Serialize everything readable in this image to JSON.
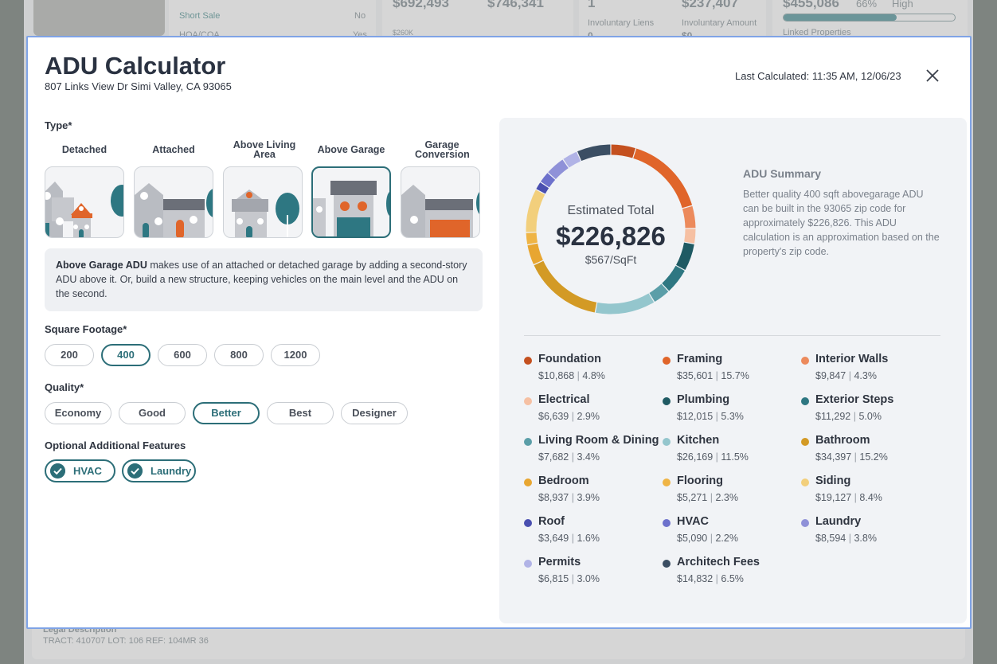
{
  "background": {
    "short_sale_label": "Short Sale",
    "short_sale_value": "No",
    "hoa_label": "HOA/COA",
    "hoa_value": "Yes",
    "value_a": "$692,493",
    "value_b": "$746,341",
    "axis_tick": "$260K",
    "liens_count": "1",
    "liens_amount": "$237,407",
    "involuntary_liens_label": "Involuntary Liens",
    "involuntary_amount_label": "Involuntary Amount",
    "involuntary_liens_value": "0",
    "involuntary_amount_value": "$0",
    "equity_value": "$455,086",
    "equity_percent": "66%",
    "equity_level": "High",
    "equity_fill": 0.66,
    "linked_properties_label": "Linked Properties",
    "legal_description_label": "Legal Description",
    "legal_description_value": "TRACT: 410707 LOT: 106 REF: 104MR 36"
  },
  "modal": {
    "title": "ADU Calculator",
    "address": "807 Links View Dr Simi Valley, CA 93065",
    "last_calculated": "Last Calculated: 11:35 AM, 12/06/23",
    "type_label": "Type*",
    "types": [
      {
        "label": "Detached",
        "selected": false
      },
      {
        "label": "Attached",
        "selected": false
      },
      {
        "label": "Above Living Area",
        "selected": false
      },
      {
        "label": "Above Garage",
        "selected": true
      },
      {
        "label": "Garage Conversion",
        "selected": false
      }
    ],
    "description_bold": "Above Garage ADU",
    "description_text": " makes use of an attached or detached garage by adding a second-story ADU above it. Or, build a new structure, keeping vehicles on the main level and the ADU on the second.",
    "sqft_label": "Square Footage*",
    "sqft_options": [
      "200",
      "400",
      "600",
      "800",
      "1200"
    ],
    "sqft_selected": "400",
    "quality_label": "Quality*",
    "quality_options": [
      "Economy",
      "Good",
      "Better",
      "Best",
      "Designer"
    ],
    "quality_selected": "Better",
    "features_label": "Optional Additional Features",
    "features": [
      {
        "label": "HVAC",
        "checked": true
      },
      {
        "label": "Laundry",
        "checked": true
      }
    ],
    "accent_color": "#2c6e78"
  },
  "summary": {
    "estimated_label": "Estimated Total",
    "estimated_total": "$226,826",
    "per_sqft": "$567/SqFt",
    "title": "ADU Summary",
    "text": "Better quality 400 sqft abovegarage ADU can be built in the 93065 zip code for approximately $226,826. This ADU calculation is an approximation based on the property's zip code."
  },
  "chart_data": {
    "type": "pie",
    "donut": true,
    "categories": [
      "Foundation",
      "Framing",
      "Interior Walls",
      "Electrical",
      "Plumbing",
      "Exterior Steps",
      "Living Room & Dining",
      "Kitchen",
      "Bathroom",
      "Bedroom",
      "Flooring",
      "Siding",
      "Roof",
      "HVAC",
      "Laundry",
      "Permits",
      "Architech Fees"
    ],
    "amounts": [
      "$10,868",
      "$35,601",
      "$9,847",
      "$6,639",
      "$12,015",
      "$11,292",
      "$7,682",
      "$26,169",
      "$34,397",
      "$8,937",
      "$5,271",
      "$19,127",
      "$3,649",
      "$5,090",
      "$8,594",
      "$6,815",
      "$14,832"
    ],
    "percents": [
      "4.8%",
      "15.7%",
      "4.3%",
      "2.9%",
      "5.3%",
      "5.0%",
      "3.4%",
      "11.5%",
      "15.2%",
      "3.9%",
      "2.3%",
      "8.4%",
      "1.6%",
      "2.2%",
      "3.8%",
      "3.0%",
      "6.5%"
    ],
    "values": [
      10868,
      35601,
      9847,
      6639,
      12015,
      11292,
      7682,
      26169,
      34397,
      8937,
      5271,
      19127,
      3649,
      5090,
      8594,
      6815,
      14832
    ],
    "colors": [
      "#c4501f",
      "#e0652a",
      "#ec8a5c",
      "#f6c0a3",
      "#1f5a63",
      "#2e7782",
      "#5b9ea8",
      "#94c6cd",
      "#d39a25",
      "#e8a631",
      "#efb445",
      "#f2cf7c",
      "#4a4fb0",
      "#6d71cc",
      "#8f91d8",
      "#b1b3e6",
      "#3b4e63"
    ]
  }
}
